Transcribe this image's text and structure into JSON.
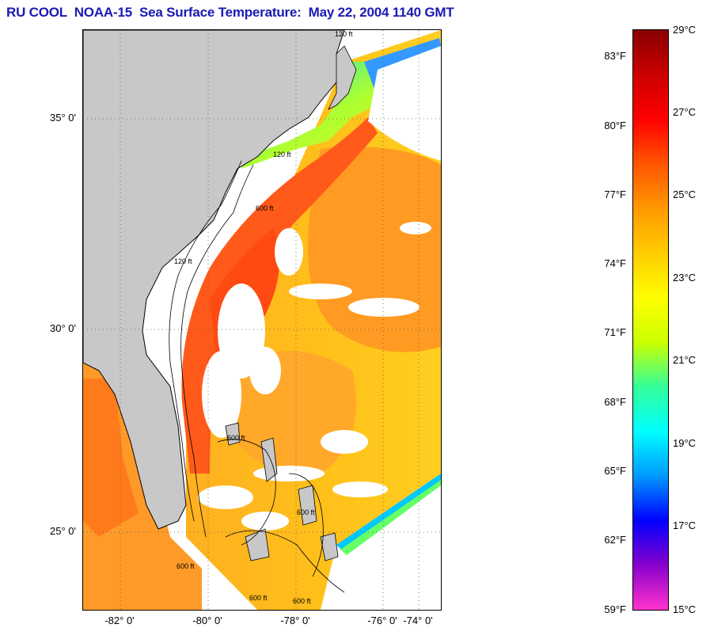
{
  "title": "RU COOL  NOAA-15  Sea Surface Temperature:  May 22, 2004 1140 GMT",
  "map": {
    "lat_labels": [
      "35° 0'",
      "30° 0'",
      "25° 0'"
    ],
    "lon_labels": [
      "-82° 0'",
      "-80° 0'",
      "-78° 0'",
      "-76° 0'",
      "-74° 0'"
    ],
    "contour_labels": [
      "120 ft",
      "600 ft",
      "120 ft",
      "600 ft",
      "120 ft",
      "600 ft",
      "600 ft",
      "600 ft",
      "600 ft"
    ]
  },
  "colorbar": {
    "fahrenheit_labels": [
      "83°F",
      "80°F",
      "77°F",
      "74°F",
      "71°F",
      "68°F",
      "65°F",
      "62°F",
      "59°F"
    ],
    "celsius_labels": [
      "29°C",
      "27°C",
      "25°C",
      "23°C",
      "21°C",
      "19°C",
      "17°C",
      "15°C"
    ],
    "colors": [
      "#ff33cc",
      "#8800cc",
      "#0000ff",
      "#0099ff",
      "#00ffff",
      "#33ff99",
      "#ccff00",
      "#ffff00",
      "#ffcc00",
      "#ff9900",
      "#ff5500",
      "#ff0000",
      "#cc0000",
      "#880000"
    ]
  },
  "colors": {
    "land": "#c8c8c8",
    "warm_sea": "#ff9a1a",
    "gulf_stream": "#ff4d1a",
    "title": "#1a1ab4"
  }
}
